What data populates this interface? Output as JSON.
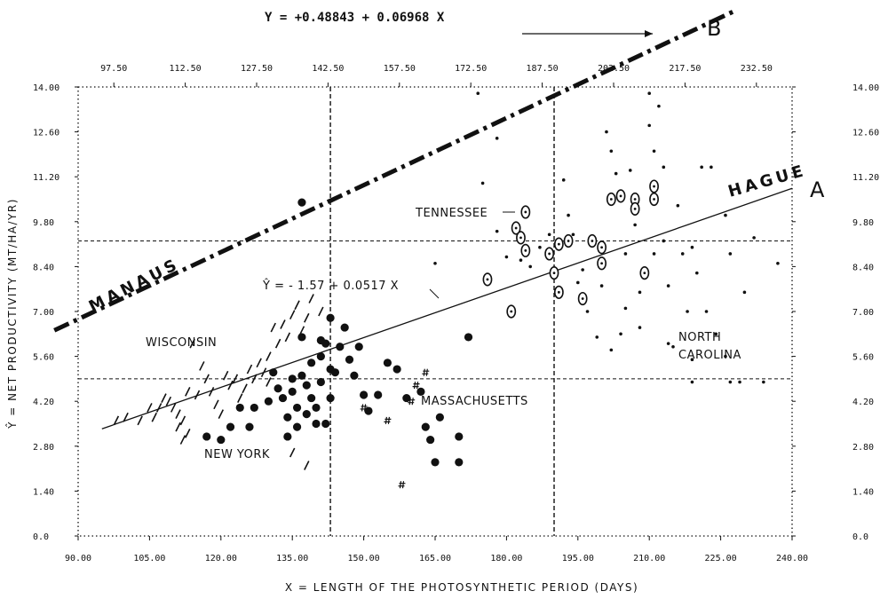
{
  "chart_data": {
    "type": "scatter",
    "title": "",
    "xlabel": "X = LENGTH OF THE PHOTOSYNTHETIC PERIOD (DAYS)",
    "ylabel": "Ŷ = NET PRODUCTIVITY (MT/HA/YR)",
    "xlim": [
      90,
      240
    ],
    "ylim": [
      0,
      14
    ],
    "x_ticks_bottom": [
      "90.00",
      "105.00",
      "120.00",
      "135.00",
      "150.00",
      "165.00",
      "180.00",
      "195.00",
      "210.00",
      "225.00",
      "240.00"
    ],
    "x_ticks_top": [
      "97.50",
      "112.50",
      "127.50",
      "142.50",
      "157.50",
      "172.50",
      "187.50",
      "202.50",
      "217.50",
      "232.50"
    ],
    "y_ticks": [
      "0.0",
      "1.40",
      "2.80",
      "4.20",
      "5.60",
      "7.00",
      "8.40",
      "9.80",
      "11.20",
      "12.60",
      "14.00"
    ],
    "grid": {
      "vertical_dashed_x": [
        143,
        190
      ],
      "horizontal_dashed_y": [
        4.9,
        9.2
      ]
    },
    "top_equation": "Y = +0.48843 + 0.06968 X",
    "fit_equation": "Ŷ = - 1.57 + 0.0517 X",
    "lines": [
      {
        "name": "HAGUE",
        "letter": "A",
        "style": "solid",
        "intercept": -1.57,
        "slope": 0.0517,
        "x_range": [
          95,
          240
        ]
      },
      {
        "name": "MANAUS",
        "letter": "B",
        "style": "dash-dot",
        "intercept": 0.48843,
        "slope": 0.06968,
        "x_range": [
          85,
          240
        ]
      }
    ],
    "annotations": [
      "WISCONSIN",
      "NEW YORK",
      "MASSACHUSETTS",
      "TENNESSEE",
      "NORTH",
      "CAROLINA"
    ],
    "series": [
      {
        "name": "WISCONSIN",
        "marker": "slash",
        "points": [
          [
            98,
            3.6
          ],
          [
            100,
            3.7
          ],
          [
            103,
            3.6
          ],
          [
            105,
            4.0
          ],
          [
            106,
            3.7
          ],
          [
            107,
            4.0
          ],
          [
            108,
            4.3
          ],
          [
            109,
            4.2
          ],
          [
            110,
            4.0
          ],
          [
            111,
            3.8
          ],
          [
            111,
            3.4
          ],
          [
            112,
            3.6
          ],
          [
            112,
            3.0
          ],
          [
            113,
            4.5
          ],
          [
            113,
            3.2
          ],
          [
            114,
            6.0
          ],
          [
            115,
            4.4
          ],
          [
            116,
            5.3
          ],
          [
            117,
            4.9
          ],
          [
            118,
            4.5
          ],
          [
            119,
            4.1
          ],
          [
            120,
            3.8
          ],
          [
            121,
            5.0
          ],
          [
            122,
            4.7
          ],
          [
            123,
            4.9
          ],
          [
            124,
            4.3
          ],
          [
            125,
            4.6
          ],
          [
            126,
            5.2
          ],
          [
            127,
            4.9
          ],
          [
            128,
            5.4
          ],
          [
            129,
            5.1
          ],
          [
            130,
            5.6
          ],
          [
            130,
            4.8
          ],
          [
            131,
            6.5
          ],
          [
            132,
            6.0
          ],
          [
            133,
            6.6
          ],
          [
            134,
            6.2
          ],
          [
            135,
            6.9
          ],
          [
            136,
            7.2
          ],
          [
            137,
            6.4
          ],
          [
            138,
            6.8
          ],
          [
            139,
            7.4
          ],
          [
            141,
            7.0
          ],
          [
            135,
            2.6
          ],
          [
            138,
            2.2
          ]
        ]
      },
      {
        "name": "NEW YORK",
        "marker": "filled-circle",
        "points": [
          [
            117,
            3.1
          ],
          [
            120,
            3.0
          ],
          [
            122,
            3.4
          ],
          [
            124,
            4.0
          ],
          [
            126,
            3.4
          ],
          [
            127,
            4.0
          ],
          [
            130,
            4.2
          ],
          [
            131,
            5.1
          ],
          [
            132,
            4.6
          ],
          [
            133,
            4.3
          ],
          [
            134,
            3.7
          ],
          [
            134,
            3.1
          ],
          [
            135,
            4.5
          ],
          [
            135,
            4.9
          ],
          [
            136,
            4.0
          ],
          [
            136,
            3.4
          ],
          [
            137,
            5.0
          ],
          [
            137,
            6.2
          ],
          [
            138,
            4.7
          ],
          [
            138,
            3.8
          ],
          [
            139,
            5.4
          ],
          [
            139,
            4.3
          ],
          [
            140,
            4.0
          ],
          [
            140,
            3.5
          ],
          [
            141,
            4.8
          ],
          [
            141,
            5.6
          ],
          [
            141,
            6.1
          ],
          [
            142,
            6.0
          ],
          [
            142,
            3.5
          ],
          [
            143,
            5.2
          ],
          [
            143,
            6.8
          ],
          [
            143,
            4.3
          ],
          [
            144,
            5.1
          ],
          [
            145,
            5.9
          ],
          [
            146,
            6.5
          ],
          [
            147,
            5.5
          ],
          [
            148,
            5.0
          ],
          [
            149,
            5.9
          ],
          [
            150,
            4.4
          ],
          [
            151,
            3.9
          ],
          [
            153,
            4.4
          ],
          [
            155,
            5.4
          ],
          [
            157,
            5.2
          ],
          [
            159,
            4.3
          ],
          [
            162,
            4.5
          ],
          [
            163,
            3.4
          ],
          [
            164,
            3.0
          ],
          [
            165,
            2.3
          ],
          [
            166,
            3.7
          ],
          [
            170,
            2.3
          ],
          [
            170,
            3.1
          ],
          [
            172,
            6.2
          ],
          [
            137,
            10.4
          ]
        ]
      },
      {
        "name": "MASSACHUSETTS",
        "marker": "hash",
        "points": [
          [
            150,
            4.0
          ],
          [
            155,
            3.6
          ],
          [
            160,
            4.2
          ],
          [
            161,
            4.7
          ],
          [
            163,
            5.1
          ],
          [
            158,
            1.6
          ]
        ]
      },
      {
        "name": "TENNESSEE",
        "marker": "open-circle",
        "points": [
          [
            176,
            8.0
          ],
          [
            181,
            7.0
          ],
          [
            182,
            9.6
          ],
          [
            183,
            9.3
          ],
          [
            184,
            8.9
          ],
          [
            184,
            10.1
          ],
          [
            189,
            8.8
          ],
          [
            190,
            8.2
          ],
          [
            191,
            7.6
          ],
          [
            191,
            9.1
          ],
          [
            193,
            9.2
          ],
          [
            196,
            7.4
          ],
          [
            198,
            9.2
          ],
          [
            200,
            8.5
          ],
          [
            200,
            9.0
          ],
          [
            202,
            10.5
          ],
          [
            204,
            10.6
          ],
          [
            207,
            10.5
          ],
          [
            207,
            10.2
          ],
          [
            209,
            8.2
          ],
          [
            211,
            10.9
          ],
          [
            211,
            10.5
          ]
        ]
      },
      {
        "name": "NORTH CAROLINA",
        "marker": "small-dot",
        "points": [
          [
            165,
            8.5
          ],
          [
            174,
            13.8
          ],
          [
            175,
            11.0
          ],
          [
            178,
            12.4
          ],
          [
            178,
            9.5
          ],
          [
            180,
            8.7
          ],
          [
            183,
            8.6
          ],
          [
            185,
            8.4
          ],
          [
            187,
            9.0
          ],
          [
            189,
            9.4
          ],
          [
            192,
            11.1
          ],
          [
            193,
            10.0
          ],
          [
            194,
            9.4
          ],
          [
            195,
            7.9
          ],
          [
            196,
            8.3
          ],
          [
            197,
            7.0
          ],
          [
            199,
            6.2
          ],
          [
            200,
            7.8
          ],
          [
            201,
            12.6
          ],
          [
            202,
            5.8
          ],
          [
            202,
            12.0
          ],
          [
            203,
            11.3
          ],
          [
            204,
            6.3
          ],
          [
            205,
            7.1
          ],
          [
            205,
            8.8
          ],
          [
            206,
            11.4
          ],
          [
            207,
            9.7
          ],
          [
            208,
            6.5
          ],
          [
            208,
            7.6
          ],
          [
            210,
            13.8
          ],
          [
            210,
            12.8
          ],
          [
            211,
            8.8
          ],
          [
            211,
            12.0
          ],
          [
            212,
            13.4
          ],
          [
            213,
            9.2
          ],
          [
            213,
            11.5
          ],
          [
            214,
            7.8
          ],
          [
            214,
            6.0
          ],
          [
            215,
            5.9
          ],
          [
            216,
            10.3
          ],
          [
            217,
            8.8
          ],
          [
            218,
            7.0
          ],
          [
            219,
            9.0
          ],
          [
            220,
            8.2
          ],
          [
            221,
            11.5
          ],
          [
            222,
            7.0
          ],
          [
            223,
            11.5
          ],
          [
            224,
            6.3
          ],
          [
            226,
            10.0
          ],
          [
            227,
            8.8
          ],
          [
            229,
            10.7
          ],
          [
            230,
            7.6
          ],
          [
            229,
            4.8
          ],
          [
            226,
            5.6
          ],
          [
            232,
            9.3
          ],
          [
            219,
            5.5
          ],
          [
            219,
            4.8
          ],
          [
            227,
            4.8
          ],
          [
            234,
            4.8
          ],
          [
            237,
            8.5
          ]
        ]
      }
    ]
  }
}
